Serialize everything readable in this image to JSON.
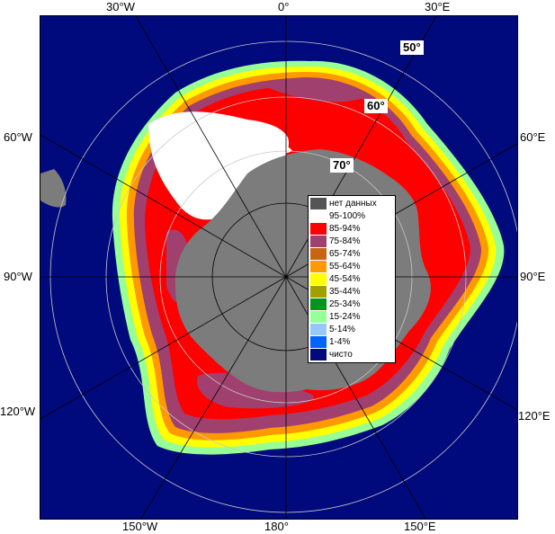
{
  "map": {
    "colors": {
      "ocean": "#000a7d",
      "land": "#7c7c7c",
      "no_data": "#555555",
      "graticule": "#c8c8c8"
    },
    "lon_labels": {
      "top_left": "30°W",
      "top_center": "0°",
      "top_right": "30°E",
      "left_upper": "60°W",
      "left_middle": "90°W",
      "left_lower": "120°W",
      "right_upper": "60°E",
      "right_middle": "90°E",
      "right_lower": "120°E",
      "bottom_left": "150°W",
      "bottom_center": "180°",
      "bottom_right": "150°E"
    },
    "lat_labels": {
      "lat50": "50°",
      "lat60": "60°",
      "lat70": "70°"
    }
  },
  "legend": {
    "items": [
      {
        "label": "нет данных",
        "color": "#555555"
      },
      {
        "label": "95-100%",
        "color": "#ffffff"
      },
      {
        "label": "85-94%",
        "color": "#ff0000"
      },
      {
        "label": "75-84%",
        "color": "#a0406e"
      },
      {
        "label": "65-74%",
        "color": "#c86414"
      },
      {
        "label": "55-64%",
        "color": "#ff9900"
      },
      {
        "label": "45-54%",
        "color": "#ffff00"
      },
      {
        "label": "35-44%",
        "color": "#a0a000"
      },
      {
        "label": "25-34%",
        "color": "#00961e"
      },
      {
        "label": "15-24%",
        "color": "#96ff96"
      },
      {
        "label": "5-14%",
        "color": "#96c8ff"
      },
      {
        "label": "1-4%",
        "color": "#0064ff"
      },
      {
        "label": "чисто",
        "color": "#000a7d"
      }
    ]
  }
}
